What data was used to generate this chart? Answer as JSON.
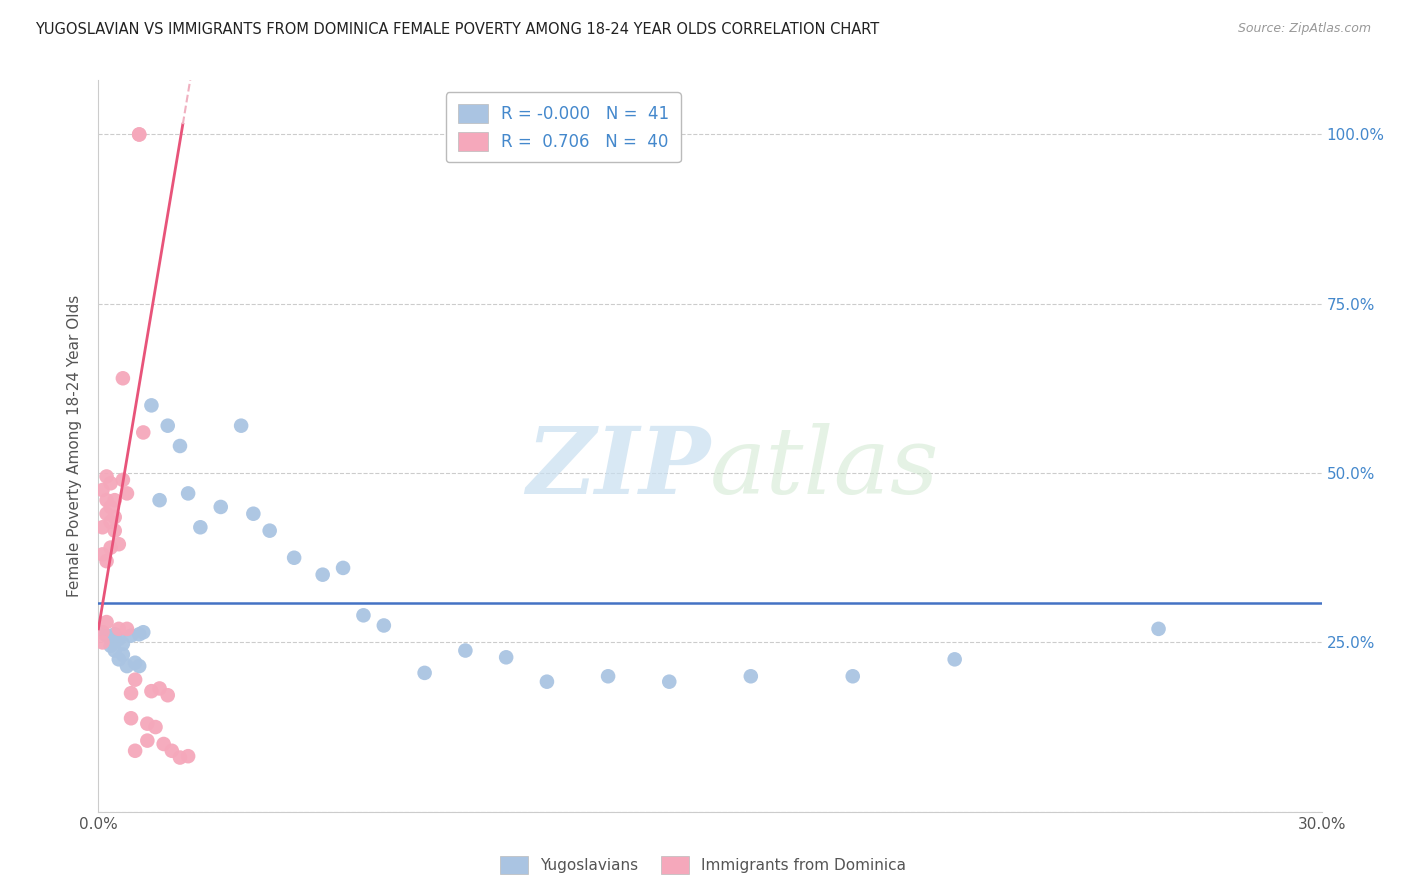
{
  "title": "YUGOSLAVIAN VS IMMIGRANTS FROM DOMINICA FEMALE POVERTY AMONG 18-24 YEAR OLDS CORRELATION CHART",
  "source": "Source: ZipAtlas.com",
  "ylabel": "Female Poverty Among 18-24 Year Olds",
  "xlim": [
    0.0,
    0.3
  ],
  "ylim": [
    0.0,
    1.08
  ],
  "legend_R_blue": "-0.000",
  "legend_N_blue": "41",
  "legend_R_pink": "0.706",
  "legend_N_pink": "40",
  "blue_color": "#aac4e2",
  "pink_color": "#f5a8bb",
  "trend_blue_color": "#4472c4",
  "trend_pink_color": "#e8547a",
  "trend_pink_dash_color": "#f0b0c0",
  "watermark_zip": "ZIP",
  "watermark_atlas": "atlas",
  "blue_x": [
    0.001,
    0.002,
    0.003,
    0.003,
    0.004,
    0.004,
    0.005,
    0.005,
    0.006,
    0.006,
    0.007,
    0.008,
    0.009,
    0.01,
    0.01,
    0.011,
    0.013,
    0.015,
    0.017,
    0.02,
    0.022,
    0.025,
    0.03,
    0.035,
    0.038,
    0.042,
    0.048,
    0.055,
    0.06,
    0.065,
    0.07,
    0.08,
    0.09,
    0.1,
    0.11,
    0.125,
    0.14,
    0.16,
    0.185,
    0.21,
    0.26
  ],
  "blue_y": [
    0.265,
    0.26,
    0.255,
    0.245,
    0.262,
    0.238,
    0.255,
    0.225,
    0.248,
    0.232,
    0.215,
    0.26,
    0.22,
    0.262,
    0.215,
    0.265,
    0.6,
    0.46,
    0.57,
    0.54,
    0.47,
    0.42,
    0.45,
    0.57,
    0.44,
    0.415,
    0.375,
    0.35,
    0.36,
    0.29,
    0.275,
    0.205,
    0.238,
    0.228,
    0.192,
    0.2,
    0.192,
    0.2,
    0.2,
    0.225,
    0.27
  ],
  "pink_x": [
    0.001,
    0.001,
    0.001,
    0.001,
    0.001,
    0.002,
    0.002,
    0.002,
    0.002,
    0.002,
    0.003,
    0.003,
    0.003,
    0.003,
    0.004,
    0.004,
    0.004,
    0.005,
    0.005,
    0.006,
    0.006,
    0.007,
    0.007,
    0.008,
    0.008,
    0.009,
    0.009,
    0.01,
    0.01,
    0.011,
    0.012,
    0.012,
    0.013,
    0.014,
    0.015,
    0.016,
    0.017,
    0.018,
    0.02,
    0.022
  ],
  "pink_y": [
    0.265,
    0.25,
    0.42,
    0.475,
    0.38,
    0.495,
    0.46,
    0.44,
    0.28,
    0.37,
    0.485,
    0.45,
    0.428,
    0.39,
    0.46,
    0.435,
    0.415,
    0.395,
    0.27,
    0.64,
    0.49,
    0.47,
    0.27,
    0.175,
    0.138,
    0.195,
    0.09,
    1.0,
    1.0,
    0.56,
    0.13,
    0.105,
    0.178,
    0.125,
    0.182,
    0.1,
    0.172,
    0.09,
    0.08,
    0.082
  ]
}
